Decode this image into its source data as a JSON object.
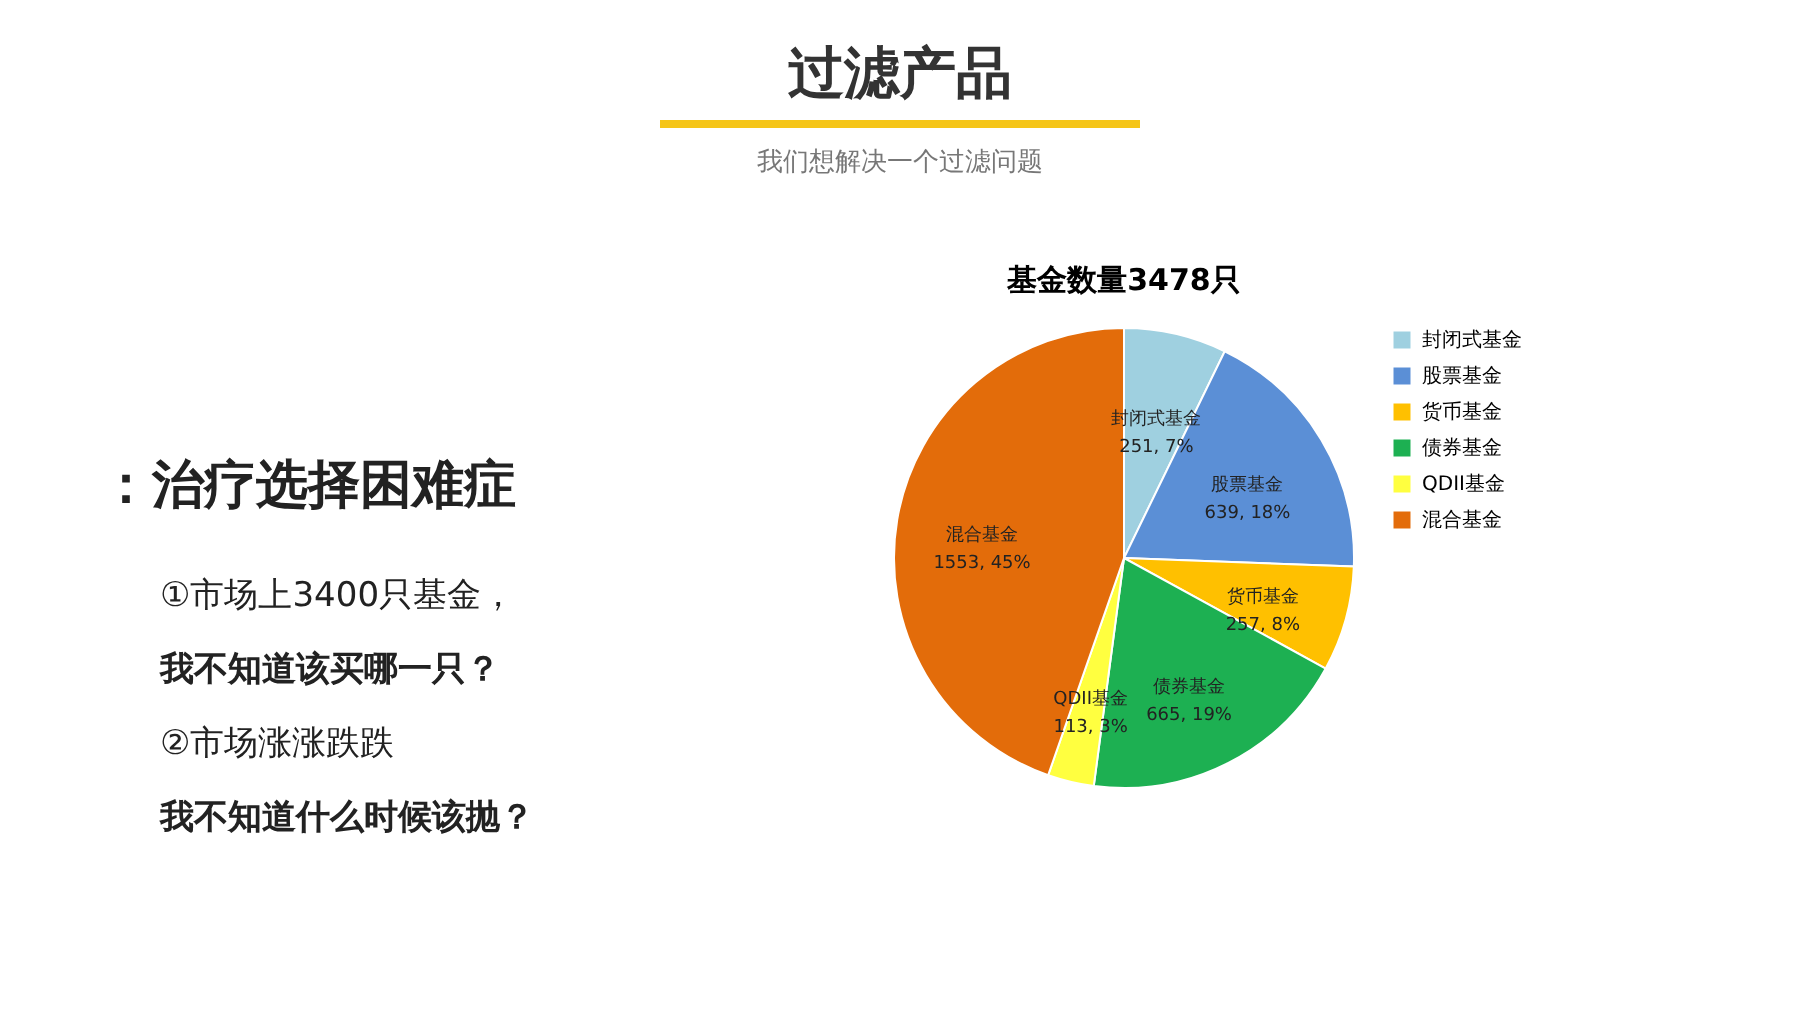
{
  "chart_data": {
    "type": "pie",
    "title": "基金数量3478只",
    "categories": [
      "封闭式基金",
      "股票基金",
      "货币基金",
      "债券基金",
      "QDII基金",
      "混合基金"
    ],
    "values": [
      251,
      639,
      257,
      665,
      113,
      1553
    ],
    "colors": [
      "#9fd0e0",
      "#5b8fd6",
      "#ffc000",
      "#1db052",
      "#ffff40",
      "#e36c0a"
    ],
    "value_labels": [
      "251, 7%",
      "639, 18%",
      "257, 8%",
      "665, 19%",
      "113, 3%",
      "1553, 45%"
    ],
    "legend": "right",
    "annotations": [
      "过滤产品",
      "我们想解决一个过滤问题",
      "：治疗选择困难症",
      "①市场上3400只基金，",
      "我不知道该买哪一只？",
      "②市场涨涨跌跌",
      "我不知道什么时候该抛？"
    ]
  }
}
